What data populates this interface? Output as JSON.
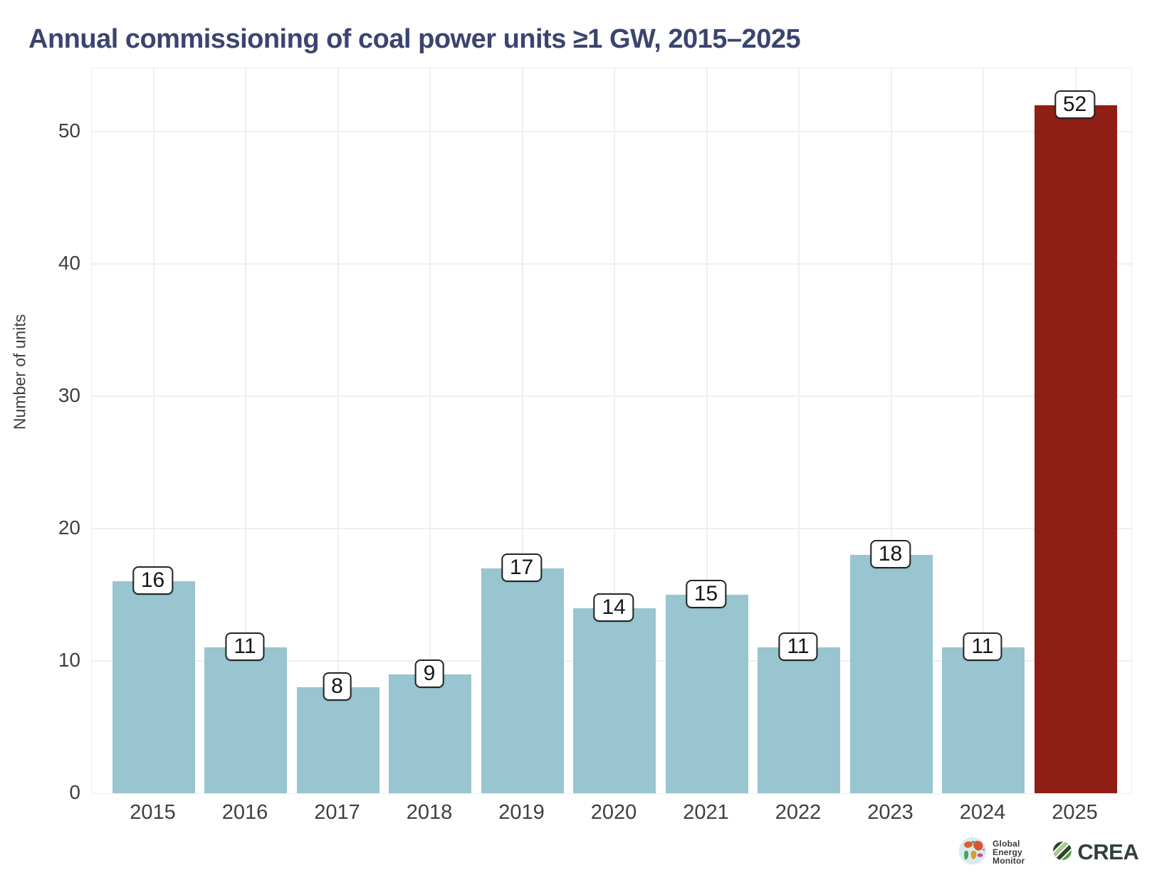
{
  "chart_data": {
    "type": "bar",
    "title": "Annual commissioning of coal power units ≥1 GW, 2015–2025",
    "categories": [
      "2015",
      "2016",
      "2017",
      "2018",
      "2019",
      "2020",
      "2021",
      "2022",
      "2023",
      "2024",
      "2025"
    ],
    "values": [
      16,
      11,
      8,
      9,
      17,
      14,
      15,
      11,
      18,
      11,
      52
    ],
    "xlabel": "",
    "ylabel": "Number of units",
    "yticks": [
      0,
      10,
      20,
      30,
      40,
      50
    ],
    "ylim": [
      0,
      54.8
    ],
    "grid": true,
    "legend": false,
    "value_labels": true,
    "bar_color": "#98c5cf",
    "highlight_color": "#8f1f14",
    "highlight_category": "2025"
  },
  "footer": {
    "gem": {
      "lines": [
        "Global",
        "Energy",
        "Monitor"
      ]
    },
    "crea": {
      "label": "CREA"
    }
  }
}
